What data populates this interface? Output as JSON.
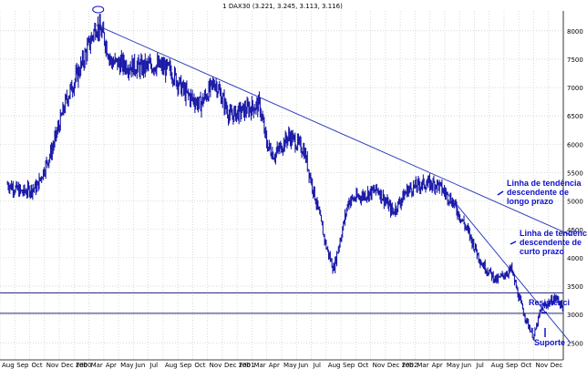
{
  "chart_data": {
    "type": "ohlc",
    "title": "1 DAX30 (3.221, 3.245, 3.113, 3.116)",
    "xlabel": "",
    "ylabel": "",
    "ylim": [
      2200,
      8350
    ],
    "yticks": [
      2500,
      3000,
      3500,
      4000,
      4500,
      5000,
      5500,
      6000,
      6500,
      7000,
      7500,
      8000
    ],
    "grid": true,
    "x_months": [
      "Aug",
      "Sep",
      "Oct",
      "Nov",
      "Dec 2000",
      "Feb",
      "Mar",
      "Apr",
      "May",
      "Jun",
      "Jul",
      "Aug",
      "Sep",
      "Oct",
      "Nov",
      "Dec 2001",
      "Feb",
      "Mar",
      "Apr",
      "May",
      "Jun",
      "Jul",
      "Aug",
      "Sep",
      "Oct",
      "Nov",
      "Dec 2002",
      "Feb",
      "Mar",
      "Apr",
      "May",
      "Jun",
      "Jul",
      "Aug",
      "Sep",
      "Oct",
      "Nov",
      "Dec"
    ],
    "price_path": [
      [
        0,
        5300
      ],
      [
        1,
        5150
      ],
      [
        2,
        5250
      ],
      [
        3,
        5900
      ],
      [
        4,
        6800
      ],
      [
        5,
        7400
      ],
      [
        6,
        8100
      ],
      [
        6.5,
        7900
      ],
      [
        7,
        7450
      ],
      [
        8,
        7400
      ],
      [
        9,
        7350
      ],
      [
        10,
        7400
      ],
      [
        11,
        7300
      ],
      [
        12,
        6900
      ],
      [
        13,
        6700
      ],
      [
        14,
        7100
      ],
      [
        15,
        6500
      ],
      [
        16,
        6600
      ],
      [
        17,
        6700
      ],
      [
        17.5,
        6000
      ],
      [
        18,
        5800
      ],
      [
        19,
        6150
      ],
      [
        20,
        5900
      ],
      [
        21,
        4800
      ],
      [
        21.5,
        4200
      ],
      [
        22,
        3800
      ],
      [
        22.6,
        4500
      ],
      [
        23,
        5000
      ],
      [
        24,
        5100
      ],
      [
        25,
        5200
      ],
      [
        26,
        4800
      ],
      [
        27,
        5200
      ],
      [
        28,
        5300
      ],
      [
        29,
        5300
      ],
      [
        30,
        5000
      ],
      [
        31,
        4500
      ],
      [
        32,
        3900
      ],
      [
        33,
        3600
      ],
      [
        34,
        3800
      ],
      [
        34.5,
        3300
      ],
      [
        35,
        2900
      ],
      [
        35.5,
        2600
      ],
      [
        36,
        3100
      ],
      [
        36.5,
        3200
      ],
      [
        37,
        3300
      ],
      [
        37.5,
        3116
      ]
    ],
    "annotations": [
      {
        "text": "Linha de tendência descendente de longo prazo",
        "line": [
          [
            6,
            8100
          ],
          [
            38,
            4400
          ]
        ]
      },
      {
        "text": "Linha de tendência descendente de curto prazo",
        "line": [
          [
            29,
            5350
          ],
          [
            38,
            2500
          ]
        ]
      },
      {
        "text": "Resistência",
        "level": 3380
      },
      {
        "text": "Suporte",
        "level": 3020
      }
    ],
    "peak_marker": [
      6,
      8150
    ]
  },
  "labels": {
    "ann_long": [
      "Linha de tendência",
      "descendente de",
      "longo prazo"
    ],
    "ann_short": [
      "Linha de tendência",
      "descendente de",
      "curto prazo"
    ],
    "ann_res": "Resistênci",
    "ann_sup": "Suporte"
  },
  "colors": {
    "price": "#1a1aa8",
    "line": "#3040c0",
    "grid": "#c8d8c8",
    "annotation": "#1010c8"
  }
}
